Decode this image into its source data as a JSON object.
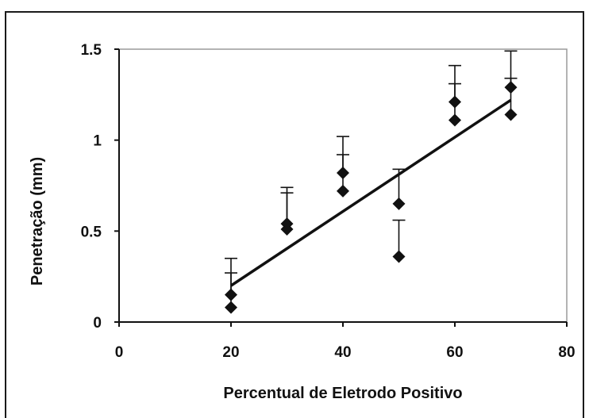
{
  "chart_data": {
    "type": "scatter",
    "title": "",
    "xlabel": "Percentual de Eletrodo Positivo",
    "ylabel": "Penetração (mm)",
    "xlim": [
      0,
      80
    ],
    "ylim": [
      0,
      1.5
    ],
    "x_ticks": [
      0,
      20,
      40,
      60,
      80
    ],
    "y_ticks": [
      0,
      0.5,
      1,
      1.5
    ],
    "x_tick_labels": [
      "0",
      "20",
      "40",
      "60",
      "80"
    ],
    "y_tick_labels": [
      "0",
      "0.5",
      "1",
      "1.5"
    ],
    "grid": false,
    "legend": "none",
    "points": [
      {
        "x": 20,
        "y": 0.15
      },
      {
        "x": 20,
        "y": 0.08
      },
      {
        "x": 30,
        "y": 0.54
      },
      {
        "x": 30,
        "y": 0.51
      },
      {
        "x": 40,
        "y": 0.82
      },
      {
        "x": 40,
        "y": 0.72
      },
      {
        "x": 50,
        "y": 0.65
      },
      {
        "x": 50,
        "y": 0.36
      },
      {
        "x": 60,
        "y": 1.21
      },
      {
        "x": 60,
        "y": 1.11
      },
      {
        "x": 70,
        "y": 1.29
      },
      {
        "x": 70,
        "y": 1.14
      }
    ],
    "error_bars": [
      {
        "x": 20,
        "y": 0.15,
        "upper": 0.35
      },
      {
        "x": 20,
        "y": 0.08,
        "upper": 0.27
      },
      {
        "x": 30,
        "y": 0.54,
        "upper": 0.74
      },
      {
        "x": 30,
        "y": 0.51,
        "upper": 0.71
      },
      {
        "x": 40,
        "y": 0.82,
        "upper": 1.02
      },
      {
        "x": 40,
        "y": 0.72,
        "upper": 0.92
      },
      {
        "x": 50,
        "y": 0.65,
        "upper": 0.84
      },
      {
        "x": 50,
        "y": 0.36,
        "upper": 0.56
      },
      {
        "x": 60,
        "y": 1.21,
        "upper": 1.41
      },
      {
        "x": 60,
        "y": 1.11,
        "upper": 1.31
      },
      {
        "x": 70,
        "y": 1.29,
        "upper": 1.49
      },
      {
        "x": 70,
        "y": 1.14,
        "upper": 1.34
      }
    ],
    "trendline": {
      "x": [
        20,
        70
      ],
      "y": [
        0.2,
        1.22
      ]
    },
    "colors": {
      "marker": "#111111",
      "line": "#111111",
      "axis": "#111111",
      "plot_frame": "#9a9a9a"
    }
  }
}
